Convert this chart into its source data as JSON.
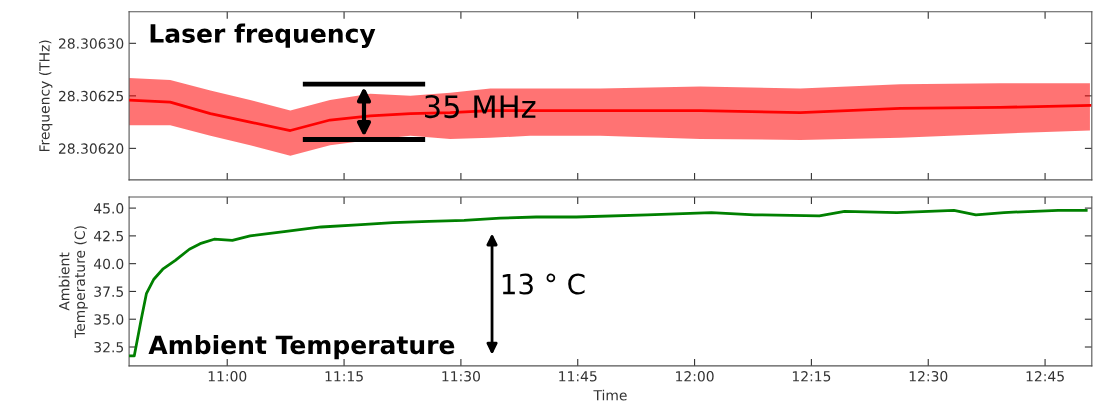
{
  "chart_data": [
    {
      "type": "line",
      "title": "Laser frequency",
      "ylabel": "Frequency (THz)",
      "annotations": [
        "35 MHz"
      ],
      "x": [
        10.79,
        10.878,
        10.964,
        11.049,
        11.135,
        11.22,
        11.306,
        11.392,
        11.477,
        11.563,
        11.648,
        11.798,
        12.012,
        12.226,
        12.44,
        12.654,
        12.846
      ],
      "series": [
        {
          "color": "#ff0000",
          "values": [
            28.306246,
            28.306244,
            28.306233,
            28.306225,
            28.306217,
            28.306227,
            28.306231,
            28.306233,
            28.306234,
            28.306236,
            28.306236,
            28.306236,
            28.306236,
            28.306234,
            28.306238,
            28.306239,
            28.306241
          ],
          "lower": [
            28.306222,
            28.306222,
            28.306212,
            28.306203,
            28.306193,
            28.306203,
            28.306208,
            28.306212,
            28.306209,
            28.30621,
            28.306212,
            28.306212,
            28.306209,
            28.306208,
            28.30621,
            28.306214,
            28.306217
          ],
          "upper": [
            28.306267,
            28.306265,
            28.306255,
            28.306246,
            28.306236,
            28.306246,
            28.306252,
            28.30625,
            28.306253,
            28.306257,
            28.306257,
            28.306257,
            28.306259,
            28.306257,
            28.306261,
            28.306262,
            28.306262
          ]
        }
      ],
      "xlim": [
        10.79,
        12.85
      ],
      "xticks": [
        {
          "value": 11.0,
          "label": null
        },
        {
          "value": 11.25,
          "label": null
        },
        {
          "value": 11.5,
          "label": null
        },
        {
          "value": 11.75,
          "label": null
        },
        {
          "value": 12.0,
          "label": null
        },
        {
          "value": 12.25,
          "label": null
        },
        {
          "value": 12.5,
          "label": null
        },
        {
          "value": 12.75,
          "label": null
        }
      ],
      "ylim": [
        28.30617,
        28.30633
      ],
      "yticks": [
        {
          "value": 28.3062,
          "label": "28.30620"
        },
        {
          "value": 28.30625,
          "label": "28.30625"
        },
        {
          "value": 28.3063,
          "label": "28.30630"
        }
      ],
      "tick_labels": "y",
      "grid": false,
      "legend": false
    },
    {
      "type": "line",
      "title": "Ambient Temperature",
      "xlabel": "Time",
      "ylabel": "Ambient\nTemperature (C)",
      "annotations": [
        "13 ° C"
      ],
      "x": [
        10.792,
        10.801,
        10.816,
        10.827,
        10.843,
        10.862,
        10.889,
        10.919,
        10.942,
        10.972,
        11.011,
        11.049,
        11.126,
        11.201,
        11.278,
        11.355,
        11.432,
        11.507,
        11.584,
        11.661,
        11.747,
        11.899,
        12.036,
        12.128,
        12.267,
        12.321,
        12.433,
        12.555,
        12.602,
        12.662,
        12.778,
        12.838
      ],
      "series": [
        {
          "color": "#008000",
          "values": [
            31.7,
            31.7,
            35.0,
            37.3,
            38.6,
            39.5,
            40.3,
            41.3,
            41.8,
            42.2,
            42.1,
            42.5,
            42.9,
            43.3,
            43.5,
            43.7,
            43.8,
            43.9,
            44.1,
            44.2,
            44.2,
            44.4,
            44.6,
            44.4,
            44.3,
            44.7,
            44.6,
            44.8,
            44.4,
            44.6,
            44.8,
            44.8
          ]
        }
      ],
      "xlim": [
        10.79,
        12.85
      ],
      "xticks": [
        {
          "value": 11.0,
          "label": "11:00"
        },
        {
          "value": 11.25,
          "label": "11:15"
        },
        {
          "value": 11.5,
          "label": "11:30"
        },
        {
          "value": 11.75,
          "label": "11:45"
        },
        {
          "value": 12.0,
          "label": "12:00"
        },
        {
          "value": 12.25,
          "label": "12:15"
        },
        {
          "value": 12.5,
          "label": "12:30"
        },
        {
          "value": 12.75,
          "label": "12:45"
        }
      ],
      "ylim": [
        30.8,
        46.0
      ],
      "yticks": [
        32.5,
        {
          "value": 35,
          "label": "35.0"
        },
        37.5,
        {
          "value": 40,
          "label": "40.0"
        },
        42.5,
        {
          "value": 45,
          "label": "45.0"
        }
      ],
      "grid": false,
      "legend": false
    }
  ]
}
